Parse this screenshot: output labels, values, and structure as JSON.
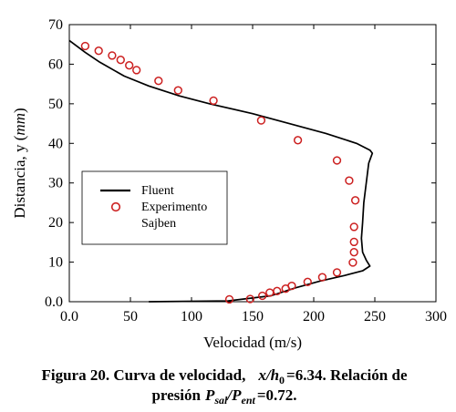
{
  "chart_data": {
    "type": "line",
    "xlabel": "Velocidad (m/s)",
    "ylabel_prefix": "Distancia, y (",
    "ylabel_unit": "mm",
    "ylabel_suffix": ")",
    "xlim": [
      0,
      300
    ],
    "ylim": [
      0,
      70
    ],
    "x_ticks": [
      0,
      50,
      100,
      150,
      200,
      250,
      300
    ],
    "x_tick_labels": [
      "0.0",
      "50",
      "100",
      "150",
      "200",
      "250",
      "300"
    ],
    "y_ticks": [
      0,
      10,
      20,
      30,
      40,
      50,
      60,
      70
    ],
    "y_tick_labels": [
      "0.0",
      "10",
      "20",
      "30",
      "40",
      "50",
      "60",
      "70"
    ],
    "grid": false,
    "legend_position": "center-left",
    "series": [
      {
        "name": "Fluent",
        "style": "line",
        "color": "#000000",
        "points": [
          [
            65,
            0
          ],
          [
            130,
            0.2
          ],
          [
            165,
            1.5
          ],
          [
            185,
            3.5
          ],
          [
            205,
            5.2
          ],
          [
            225,
            6.6
          ],
          [
            240,
            7.8
          ],
          [
            246,
            9
          ],
          [
            243,
            10.5
          ],
          [
            240,
            12.5
          ],
          [
            239,
            16
          ],
          [
            240,
            20
          ],
          [
            241,
            25
          ],
          [
            243,
            30
          ],
          [
            245,
            35
          ],
          [
            248,
            37.5
          ],
          [
            246,
            38.3
          ],
          [
            235,
            40
          ],
          [
            210,
            42.5
          ],
          [
            180,
            45
          ],
          [
            150,
            47.5
          ],
          [
            115,
            50
          ],
          [
            90,
            52
          ],
          [
            65,
            54.5
          ],
          [
            45,
            57
          ],
          [
            25,
            60.5
          ],
          [
            13,
            63
          ],
          [
            0,
            66
          ]
        ]
      },
      {
        "name": "Experimento Sajben",
        "style": "marker",
        "marker": "open-circle",
        "color": "#cc2020",
        "points": [
          [
            13,
            64.6
          ],
          [
            24,
            63.4
          ],
          [
            35,
            62.2
          ],
          [
            42,
            61.1
          ],
          [
            49,
            59.7
          ],
          [
            55,
            58.5
          ],
          [
            73,
            55.8
          ],
          [
            89,
            53.4
          ],
          [
            118,
            50.8
          ],
          [
            157,
            45.8
          ],
          [
            187,
            40.8
          ],
          [
            219,
            35.7
          ],
          [
            229,
            30.6
          ],
          [
            234,
            25.6
          ],
          [
            233,
            18.9
          ],
          [
            233,
            15.1
          ],
          [
            233,
            12.5
          ],
          [
            232,
            9.9
          ],
          [
            219,
            7.4
          ],
          [
            207,
            6.2
          ],
          [
            195,
            5.0
          ],
          [
            182,
            4.0
          ],
          [
            177,
            3.3
          ],
          [
            170,
            2.7
          ],
          [
            164,
            2.3
          ],
          [
            158,
            1.5
          ],
          [
            148,
            0.7
          ],
          [
            131,
            0.6
          ]
        ]
      }
    ],
    "legend": {
      "entries": [
        "Fluent",
        "Experimento",
        "Sajben"
      ]
    }
  },
  "caption": {
    "line1_lead": "Figura 20. Curva de velocidad,",
    "x": "x",
    "slash": "/",
    "h": "h",
    "h_sub": "0",
    "line1_tail": "=6.34. Relación de",
    "line2_lead": "presión",
    "P": "P",
    "sub_sal": "sal",
    "sub_ent": "ent",
    "line2_tail": "=0.72."
  }
}
